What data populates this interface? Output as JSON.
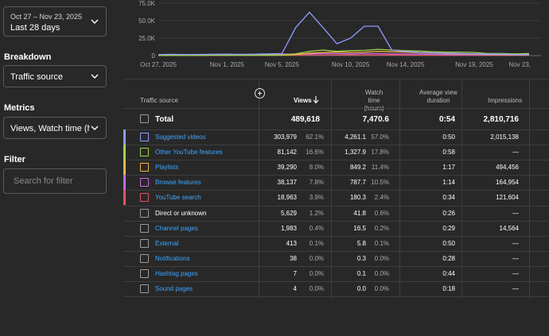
{
  "sidebar": {
    "date_range": {
      "sub": "Oct 27 – Nov 23, 2025",
      "main": "Last 28 days"
    },
    "breakdown": {
      "title": "Breakdown",
      "value": "Traffic source"
    },
    "metrics": {
      "title": "Metrics",
      "value": "Views, Watch time (hours)"
    },
    "filter": {
      "title": "Filter",
      "placeholder": "Search for filter"
    }
  },
  "chart_data": {
    "type": "line",
    "x": [
      "Oct 27",
      "Oct 28",
      "Oct 29",
      "Oct 30",
      "Oct 31",
      "Nov 1",
      "Nov 2",
      "Nov 3",
      "Nov 4",
      "Nov 5",
      "Nov 6",
      "Nov 7",
      "Nov 8",
      "Nov 9",
      "Nov 10",
      "Nov 11",
      "Nov 12",
      "Nov 13",
      "Nov 14",
      "Nov 15",
      "Nov 16",
      "Nov 17",
      "Nov 18",
      "Nov 19",
      "Nov 20",
      "Nov 21",
      "Nov 22",
      "Nov 23"
    ],
    "x_tick_labels": [
      "Oct 27, 2025",
      "Nov 1, 2025",
      "Nov 5, 2025",
      "Nov 10, 2025",
      "Nov 14, 2025",
      "Nov 19, 2025",
      "Nov 23,"
    ],
    "y_tick_labels": [
      "0",
      "25.0K",
      "50.0K",
      "75.0K"
    ],
    "ylim": [
      0,
      75000
    ],
    "series": [
      {
        "name": "Suggested videos",
        "color": "#8e9bff",
        "values": [
          1500,
          1800,
          1600,
          1700,
          1900,
          2000,
          1800,
          2100,
          2500,
          3000,
          40000,
          62000,
          40000,
          17000,
          25000,
          42000,
          42000,
          8000,
          6000,
          4500,
          4000,
          3500,
          3000,
          2500,
          2000,
          2000,
          1500,
          1500
        ]
      },
      {
        "name": "Other YouTube features",
        "color": "#9ed54a",
        "values": [
          500,
          600,
          500,
          600,
          700,
          800,
          700,
          800,
          900,
          1000,
          2500,
          6000,
          8000,
          6000,
          7000,
          7500,
          9000,
          8000,
          7000,
          6500,
          5500,
          5000,
          5000,
          4500,
          3000,
          3000,
          2500,
          3000
        ]
      },
      {
        "name": "Playlists",
        "color": "#f5b342",
        "values": [
          300,
          300,
          400,
          300,
          400,
          400,
          500,
          400,
          500,
          600,
          1500,
          3500,
          4500,
          5000,
          4500,
          5000,
          6000,
          5500,
          5000,
          4000,
          3500,
          3000,
          2500,
          2000,
          1500,
          1500,
          1000,
          1000
        ]
      },
      {
        "name": "Browse features",
        "color": "#c46ae0",
        "values": [
          600,
          700,
          1200,
          800,
          700,
          600,
          900,
          1500,
          1700,
          2300,
          2000,
          2500,
          3000,
          2800,
          2500,
          3000,
          2800,
          2500,
          2400,
          2000,
          1800,
          1500,
          1500,
          1200,
          1000,
          1000,
          900,
          900
        ]
      },
      {
        "name": "YouTube search",
        "color": "#e0575f",
        "values": [
          400,
          500,
          500,
          500,
          600,
          600,
          700,
          600,
          700,
          800,
          900,
          1000,
          1000,
          900,
          900,
          1000,
          900,
          800,
          800,
          700,
          700,
          600,
          600,
          600,
          500,
          500,
          500,
          500
        ]
      }
    ]
  },
  "table": {
    "headers": {
      "source": "Traffic source",
      "views": "Views",
      "watch_time_line1": "Watch time",
      "watch_time_line2": "(hours)",
      "avd_line1": "Average view",
      "avd_line2": "duration",
      "impressions": "Impressions"
    },
    "total": {
      "label": "Total",
      "views": "489,618",
      "watch_time": "7,470.6",
      "avd": "0:54",
      "impressions": "2,810,716"
    },
    "rows": [
      {
        "label": "Suggested videos",
        "link": true,
        "color": "#8e9bff",
        "views": "303,979",
        "views_pct": "62.1%",
        "watch": "4,261.1",
        "watch_pct": "57.0%",
        "avd": "0:50",
        "impr": "2,015,138"
      },
      {
        "label": "Other YouTube features",
        "link": true,
        "color": "#9ed54a",
        "views": "81,142",
        "views_pct": "16.6%",
        "watch": "1,327.9",
        "watch_pct": "17.8%",
        "avd": "0:58",
        "impr": "—"
      },
      {
        "label": "Playlists",
        "link": true,
        "color": "#f5b342",
        "views": "39,290",
        "views_pct": "8.0%",
        "watch": "849.2",
        "watch_pct": "11.4%",
        "avd": "1:17",
        "impr": "494,456"
      },
      {
        "label": "Browse features",
        "link": true,
        "color": "#c46ae0",
        "views": "38,137",
        "views_pct": "7.8%",
        "watch": "787.7",
        "watch_pct": "10.5%",
        "avd": "1:14",
        "impr": "164,954"
      },
      {
        "label": "YouTube search",
        "link": true,
        "color": "#e0575f",
        "views": "18,963",
        "views_pct": "3.9%",
        "watch": "180.3",
        "watch_pct": "2.4%",
        "avd": "0:34",
        "impr": "121,604"
      },
      {
        "label": "Direct or unknown",
        "link": false,
        "color": "",
        "views": "5,629",
        "views_pct": "1.2%",
        "watch": "41.8",
        "watch_pct": "0.6%",
        "avd": "0:26",
        "impr": "—"
      },
      {
        "label": "Channel pages",
        "link": true,
        "color": "",
        "views": "1,983",
        "views_pct": "0.4%",
        "watch": "16.5",
        "watch_pct": "0.2%",
        "avd": "0:29",
        "impr": "14,564"
      },
      {
        "label": "External",
        "link": true,
        "color": "",
        "views": "413",
        "views_pct": "0.1%",
        "watch": "5.8",
        "watch_pct": "0.1%",
        "avd": "0:50",
        "impr": "—"
      },
      {
        "label": "Notifications",
        "link": true,
        "color": "",
        "views": "38",
        "views_pct": "0.0%",
        "watch": "0.3",
        "watch_pct": "0.0%",
        "avd": "0:28",
        "impr": "—"
      },
      {
        "label": "Hashtag pages",
        "link": true,
        "color": "",
        "views": "7",
        "views_pct": "0.0%",
        "watch": "0.1",
        "watch_pct": "0.0%",
        "avd": "0:44",
        "impr": "—"
      },
      {
        "label": "Sound pages",
        "link": true,
        "color": "",
        "views": "4",
        "views_pct": "0.0%",
        "watch": "0.0",
        "watch_pct": "0.0%",
        "avd": "0:18",
        "impr": "—"
      }
    ]
  }
}
